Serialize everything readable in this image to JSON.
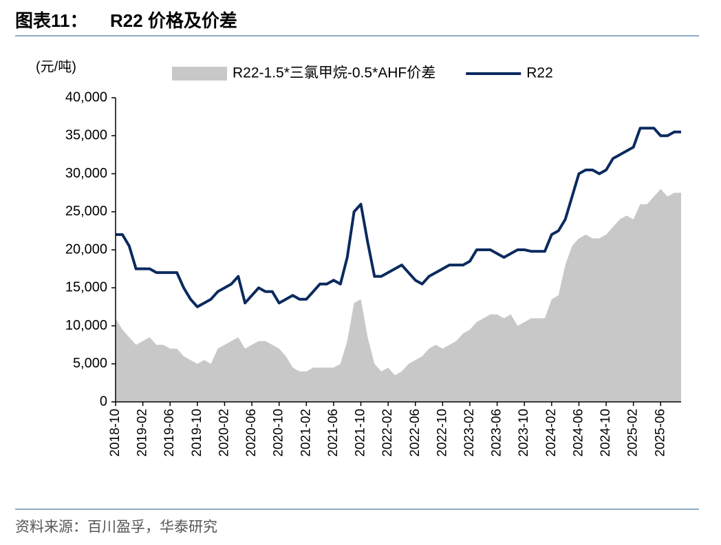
{
  "title_label": "图表11：",
  "source": "资料来源：百川盈孚，华泰研究",
  "chart_data": {
    "type": "line",
    "title": "R22 价格及价差",
    "y_unit": "(元/吨)",
    "categories": [
      "2018-10",
      null,
      null,
      null,
      "2019-02",
      null,
      null,
      null,
      "2019-06",
      null,
      null,
      null,
      "2019-10",
      null,
      null,
      null,
      "2020-02",
      null,
      null,
      null,
      "2020-06",
      null,
      null,
      null,
      "2020-10",
      null,
      null,
      null,
      "2021-02",
      null,
      null,
      null,
      "2021-06",
      null,
      null,
      null,
      "2021-10",
      null,
      null,
      null,
      "2022-02",
      null,
      null,
      null,
      "2022-06",
      null,
      null,
      null,
      "2022-10",
      null,
      null,
      null,
      "2023-02",
      null,
      null,
      null,
      "2023-06",
      null,
      null,
      null,
      "2023-10",
      null,
      null,
      null,
      "2024-02",
      null,
      null,
      null,
      "2024-06",
      null,
      null,
      null,
      "2024-10",
      null,
      null,
      null,
      "2025-02",
      null,
      null,
      null,
      "2025-06",
      null,
      null,
      null
    ],
    "series": [
      {
        "name": "R22-1.5*三氯甲烷-0.5*AHF价差",
        "kind": "area",
        "color": "#c8c8c8",
        "values": [
          11000,
          9500,
          8500,
          7500,
          8000,
          8500,
          7500,
          7500,
          7000,
          7000,
          6000,
          5500,
          5000,
          5500,
          5000,
          7000,
          7500,
          8000,
          8500,
          7000,
          7500,
          8000,
          8000,
          7500,
          7000,
          6000,
          4500,
          4000,
          4000,
          4500,
          4500,
          4500,
          4500,
          5000,
          8000,
          13000,
          13500,
          8500,
          5000,
          4000,
          4500,
          3500,
          4000,
          5000,
          5500,
          6000,
          7000,
          7500,
          7000,
          7500,
          8000,
          9000,
          9500,
          10500,
          11000,
          11500,
          11500,
          11000,
          11500,
          10000,
          10500,
          11000,
          11000,
          11000,
          13500,
          14000,
          18000,
          20500,
          21500,
          22000,
          21500,
          21500,
          22000,
          23000,
          24000,
          24500,
          24000,
          26000,
          26000,
          27000,
          28000,
          27000,
          27500,
          27500
        ]
      },
      {
        "name": "R22",
        "kind": "line",
        "color": "#0b2a5e",
        "values": [
          22000,
          22000,
          20500,
          17500,
          17500,
          17500,
          17000,
          17000,
          17000,
          17000,
          15000,
          13500,
          12500,
          13000,
          13500,
          14500,
          15000,
          15500,
          16500,
          13000,
          14000,
          15000,
          14500,
          14500,
          13000,
          13500,
          14000,
          13500,
          13500,
          14500,
          15500,
          15500,
          16000,
          15500,
          19000,
          25000,
          26000,
          21000,
          16500,
          16500,
          17000,
          17500,
          18000,
          17000,
          16000,
          15500,
          16500,
          17000,
          17500,
          18000,
          18000,
          18000,
          18500,
          20000,
          20000,
          20000,
          19500,
          19000,
          19500,
          20000,
          20000,
          19800,
          19800,
          19800,
          22000,
          22500,
          24000,
          27000,
          30000,
          30500,
          30500,
          30000,
          30500,
          32000,
          32500,
          33000,
          33500,
          36000,
          36000,
          36000,
          35000,
          35000,
          35500,
          35500
        ]
      }
    ],
    "ylim": [
      0,
      40000
    ],
    "yticks": [
      0,
      {
        "value": 5000,
        "label": "5,000"
      },
      {
        "value": 10000,
        "label": "10,000"
      },
      {
        "value": 15000,
        "label": "15,000"
      },
      {
        "value": 20000,
        "label": "20,000"
      },
      {
        "value": 25000,
        "label": "25,000"
      },
      {
        "value": 30000,
        "label": "30,000"
      },
      {
        "value": 35000,
        "label": "35,000"
      },
      {
        "value": 40000,
        "label": "40,000"
      }
    ],
    "grid": false
  }
}
